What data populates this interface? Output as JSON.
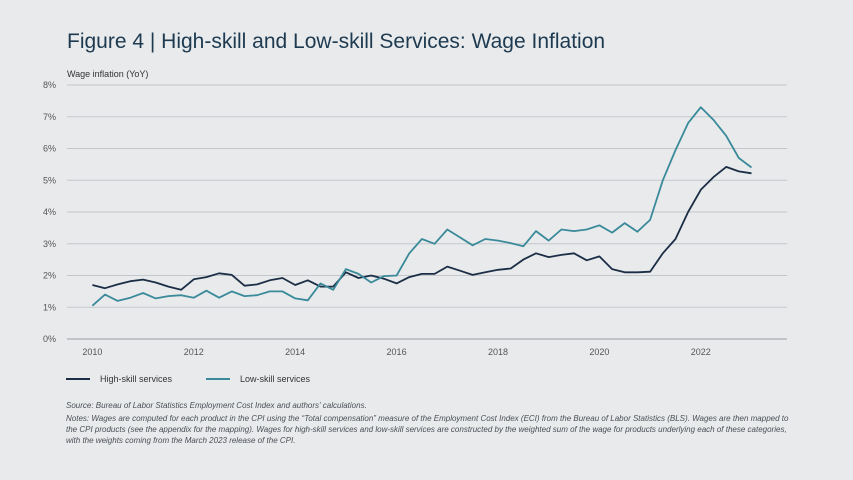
{
  "chart_data": {
    "type": "line",
    "title": "Figure 4 | High-skill and Low-skill Services: Wage Inflation",
    "ylabel": "Wage inflation (YoY)",
    "xlabel": "",
    "xlim": [
      2009.5,
      2023.7
    ],
    "ylim": [
      0,
      8
    ],
    "x_ticks": [
      "2010",
      "2012",
      "2014",
      "2016",
      "2018",
      "2020",
      "2022"
    ],
    "y_ticks": [
      "0%",
      "1%",
      "2%",
      "3%",
      "4%",
      "5%",
      "6%",
      "7%",
      "8%"
    ],
    "series": [
      {
        "name": "High-skill services",
        "color": "#1b2e45",
        "x": [
          2010.0,
          2010.25,
          2010.5,
          2010.75,
          2011.0,
          2011.25,
          2011.5,
          2011.75,
          2012.0,
          2012.25,
          2012.5,
          2012.75,
          2013.0,
          2013.25,
          2013.5,
          2013.75,
          2014.0,
          2014.25,
          2014.5,
          2014.75,
          2015.0,
          2015.25,
          2015.5,
          2015.75,
          2016.0,
          2016.25,
          2016.5,
          2016.75,
          2017.0,
          2017.25,
          2017.5,
          2017.75,
          2018.0,
          2018.25,
          2018.5,
          2018.75,
          2019.0,
          2019.25,
          2019.5,
          2019.75,
          2020.0,
          2020.25,
          2020.5,
          2020.75,
          2021.0,
          2021.25,
          2021.5,
          2021.75,
          2022.0,
          2022.25,
          2022.5,
          2022.75,
          2023.0
        ],
        "values": [
          1.7,
          1.6,
          1.72,
          1.82,
          1.87,
          1.78,
          1.65,
          1.55,
          1.88,
          1.95,
          2.07,
          2.02,
          1.68,
          1.72,
          1.85,
          1.92,
          1.7,
          1.85,
          1.65,
          1.65,
          2.1,
          1.92,
          2.0,
          1.9,
          1.75,
          1.95,
          2.05,
          2.05,
          2.28,
          2.15,
          2.02,
          2.1,
          2.18,
          2.22,
          2.5,
          2.7,
          2.58,
          2.65,
          2.7,
          2.48,
          2.6,
          2.2,
          2.1,
          2.1,
          2.12,
          2.7,
          3.15,
          4.0,
          4.7,
          5.1,
          5.42,
          5.28,
          5.22
        ]
      },
      {
        "name": "Low-skill services",
        "color": "#3a8a9a",
        "x": [
          2010.0,
          2010.25,
          2010.5,
          2010.75,
          2011.0,
          2011.25,
          2011.5,
          2011.75,
          2012.0,
          2012.25,
          2012.5,
          2012.75,
          2013.0,
          2013.25,
          2013.5,
          2013.75,
          2014.0,
          2014.25,
          2014.5,
          2014.75,
          2015.0,
          2015.25,
          2015.5,
          2015.75,
          2016.0,
          2016.25,
          2016.5,
          2016.75,
          2017.0,
          2017.25,
          2017.5,
          2017.75,
          2018.0,
          2018.25,
          2018.5,
          2018.75,
          2019.0,
          2019.25,
          2019.5,
          2019.75,
          2020.0,
          2020.25,
          2020.5,
          2020.75,
          2021.0,
          2021.25,
          2021.5,
          2021.75,
          2022.0,
          2022.25,
          2022.5,
          2022.75,
          2023.0
        ],
        "values": [
          1.05,
          1.4,
          1.2,
          1.3,
          1.45,
          1.28,
          1.35,
          1.38,
          1.3,
          1.52,
          1.3,
          1.5,
          1.35,
          1.38,
          1.5,
          1.5,
          1.28,
          1.22,
          1.75,
          1.55,
          2.2,
          2.05,
          1.78,
          1.98,
          2.0,
          2.7,
          3.15,
          3.0,
          3.45,
          3.2,
          2.95,
          3.15,
          3.1,
          3.02,
          2.92,
          3.4,
          3.1,
          3.45,
          3.4,
          3.45,
          3.58,
          3.35,
          3.65,
          3.38,
          3.75,
          5.0,
          5.95,
          6.8,
          7.3,
          6.9,
          6.4,
          5.7,
          5.4
        ]
      }
    ],
    "legend_position": "bottom-left"
  },
  "legend": {
    "high": "High-skill services",
    "low": "Low-skill services"
  },
  "notes": {
    "source": "Source: Bureau of Labor Statistics Employment Cost Index and authors' calculations.",
    "text": "Notes: Wages are computed for each product in the CPI using the “Total compensation” measure of the Employment Cost Index (ECI) from the Bureau of Labor Statistics (BLS). Wages are then mapped to the CPI products (see the appendix for the mapping). Wages for high-skill services and low-skill services are constructed by the weighted sum of the wage for products underlying each of these categories, with the weights coming from the March 2023 release of the CPI."
  }
}
